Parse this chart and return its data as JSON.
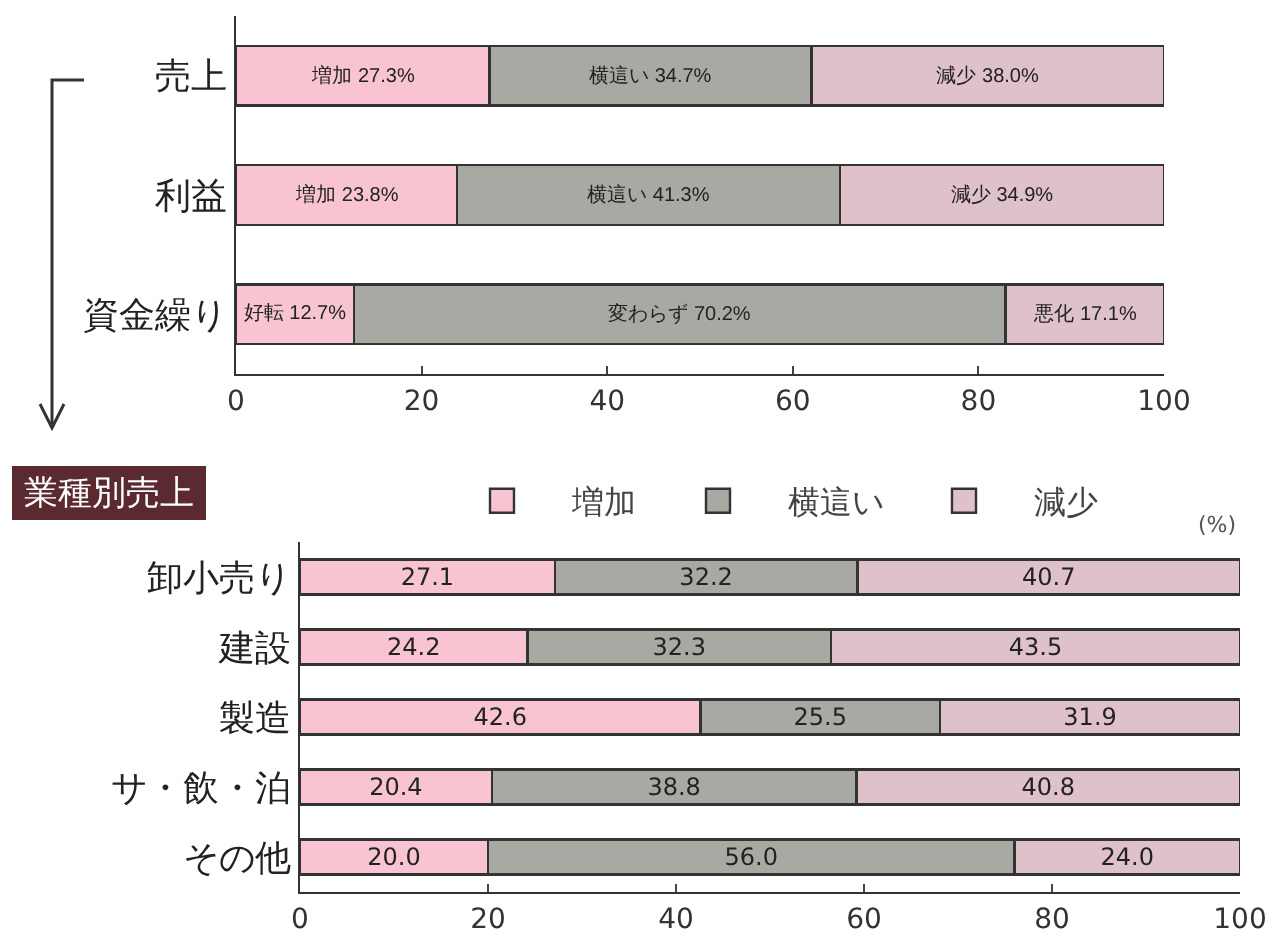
{
  "chart_data": [
    {
      "type": "bar",
      "orientation": "horizontal",
      "stacked": true,
      "categories": [
        "売上",
        "利益",
        "資金繰り"
      ],
      "xlim": [
        0,
        100
      ],
      "xticks": [
        0,
        20,
        40,
        60,
        80,
        100
      ],
      "grid": false,
      "legend": false,
      "series": [
        {
          "color": "#f8c4d1",
          "values": [
            27.3,
            23.8,
            12.7
          ],
          "value_labels": [
            "増加 27.3%",
            "増加 23.8%",
            "好転 12.7%"
          ]
        },
        {
          "color": "#a9a9a3",
          "values": [
            34.7,
            41.3,
            70.2
          ],
          "value_labels": [
            "横這い 34.7%",
            "横這い 41.3%",
            "変わらず 70.2%"
          ]
        },
        {
          "color": "#dfc1c9",
          "values": [
            38.0,
            34.9,
            17.1
          ],
          "value_labels": [
            "減少 38.0%",
            "減少 34.9%",
            "悪化 17.1%"
          ]
        }
      ]
    },
    {
      "type": "bar",
      "orientation": "horizontal",
      "stacked": true,
      "title": "業種別売上",
      "categories": [
        "卸小売り",
        "建設",
        "製造",
        "サ・飲・泊",
        "その他"
      ],
      "xlim": [
        0,
        100
      ],
      "xticks": [
        0,
        20,
        40,
        60,
        80,
        100
      ],
      "grid": false,
      "legend": "top",
      "annotations": [
        "(%)"
      ],
      "series": [
        {
          "name": "増加",
          "color": "#f8c4d1",
          "values": [
            27.1,
            24.2,
            42.6,
            20.4,
            20.0
          ],
          "value_labels": [
            "27.1",
            "24.2",
            "42.6",
            "20.4",
            "20.0"
          ]
        },
        {
          "name": "横這い",
          "color": "#a9a9a3",
          "values": [
            32.2,
            32.3,
            25.5,
            38.8,
            56.0
          ],
          "value_labels": [
            "32.2",
            "32.3",
            "25.5",
            "38.8",
            "56.0"
          ]
        },
        {
          "name": "減少",
          "color": "#dfc1c9",
          "values": [
            40.7,
            43.5,
            31.9,
            40.8,
            24.0
          ],
          "value_labels": [
            "40.7",
            "43.5",
            "31.9",
            "40.8",
            "24.0"
          ]
        }
      ]
    }
  ]
}
